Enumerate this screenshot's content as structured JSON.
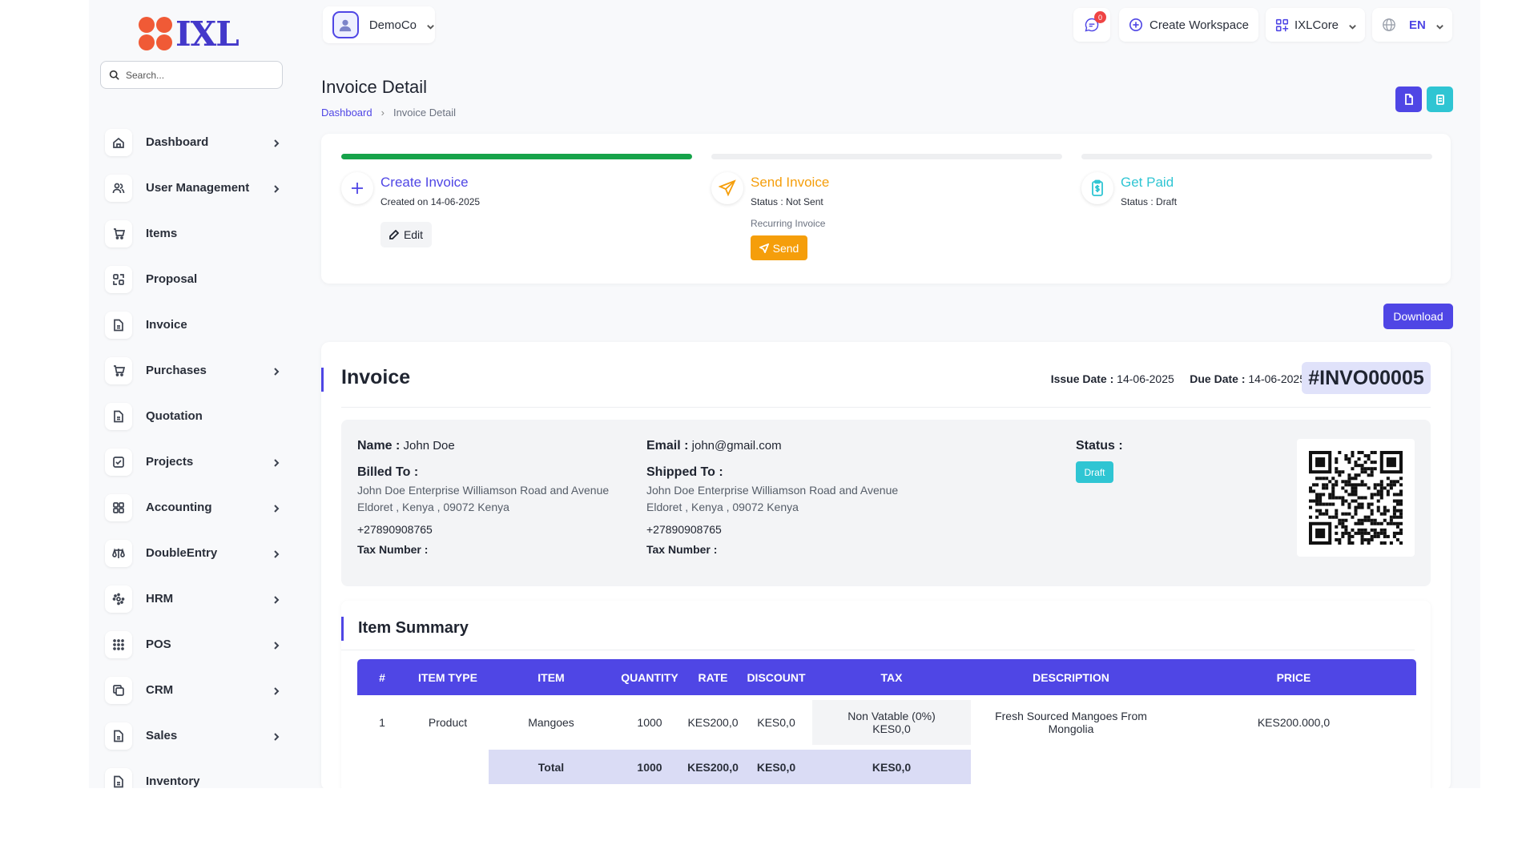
{
  "app": {
    "logo_text": "IXL"
  },
  "search": {
    "placeholder": "Search..."
  },
  "sidebar": {
    "items": [
      {
        "label": "Dashboard",
        "icon": "home-icon",
        "chevron": true
      },
      {
        "label": "User Management",
        "icon": "users-icon",
        "chevron": true
      },
      {
        "label": "Items",
        "icon": "cart-icon",
        "chevron": false
      },
      {
        "label": "Proposal",
        "icon": "swap-icon",
        "chevron": false
      },
      {
        "label": "Invoice",
        "icon": "file-icon",
        "chevron": false
      },
      {
        "label": "Purchases",
        "icon": "cart-icon",
        "chevron": true
      },
      {
        "label": "Quotation",
        "icon": "file-icon",
        "chevron": false
      },
      {
        "label": "Projects",
        "icon": "checkbox-icon",
        "chevron": true
      },
      {
        "label": "Accounting",
        "icon": "grid-icon",
        "chevron": true
      },
      {
        "label": "DoubleEntry",
        "icon": "scale-icon",
        "chevron": true
      },
      {
        "label": "HRM",
        "icon": "hrm-icon",
        "chevron": true
      },
      {
        "label": "POS",
        "icon": "dots-grid-icon",
        "chevron": true
      },
      {
        "label": "CRM",
        "icon": "copy-icon",
        "chevron": true
      },
      {
        "label": "Sales",
        "icon": "file-icon",
        "chevron": true
      },
      {
        "label": "Inventory",
        "icon": "file-icon",
        "chevron": false
      }
    ]
  },
  "topbar": {
    "org_name": "DemoCo",
    "notification_count": "0",
    "create_workspace": "Create Workspace",
    "workspace_name": "IXLCore",
    "language": "EN"
  },
  "page": {
    "title": "Invoice Detail",
    "breadcrumb": {
      "home": "Dashboard",
      "current": "Invoice Detail"
    }
  },
  "steps": {
    "create": {
      "title": "Create Invoice",
      "sub": "Created on 14-06-2025",
      "button": "Edit",
      "color": "#4f46e5"
    },
    "send": {
      "title": "Send Invoice",
      "sub": "Status : Not Sent",
      "sub2": "Recurring Invoice",
      "button": "Send",
      "color": "#f59e0b"
    },
    "paid": {
      "title": "Get Paid",
      "sub": "Status : Draft",
      "color": "#2fc5d3"
    },
    "progress_complete": [
      true,
      false,
      false
    ]
  },
  "download_label": "Download",
  "invoice": {
    "heading": "Invoice",
    "issue_label": "Issue Date :",
    "issue_date": "14-06-2025",
    "due_label": "Due Date :",
    "due_date": "14-06-2025",
    "number": "#INVO00005",
    "customer": {
      "name_label": "Name :",
      "name": "John Doe",
      "email_label": "Email :",
      "email": "john@gmail.com",
      "billed_label": "Billed To :",
      "billed_line1": "John Doe Enterprise Williamson Road and Avenue",
      "billed_line2": "Eldoret , Kenya , 09072 Kenya",
      "billed_phone": "+27890908765",
      "billed_tax": "Tax Number :",
      "shipped_label": "Shipped To :",
      "shipped_line1": "John Doe Enterprise Williamson Road and Avenue",
      "shipped_line2": "Eldoret , Kenya , 09072 Kenya",
      "shipped_phone": "+27890908765",
      "shipped_tax": "Tax Number :"
    },
    "status_label": "Status :",
    "status": "Draft"
  },
  "item_summary": {
    "title": "Item Summary",
    "columns": [
      "#",
      "ITEM TYPE",
      "ITEM",
      "QUANTITY",
      "RATE",
      "DISCOUNT",
      "TAX",
      "DESCRIPTION",
      "PRICE"
    ],
    "rows": [
      [
        "1",
        "Product",
        "Mangoes",
        "1000",
        "KES200,0",
        "KES0,0",
        "Non Vatable (0%) KES0,0",
        "Fresh Sourced Mangoes From Mongolia",
        "KES200.000,0"
      ]
    ],
    "total": {
      "label": "Total",
      "quantity": "1000",
      "rate": "KES200,0",
      "discount": "KES0,0",
      "tax": "KES0,0"
    }
  }
}
